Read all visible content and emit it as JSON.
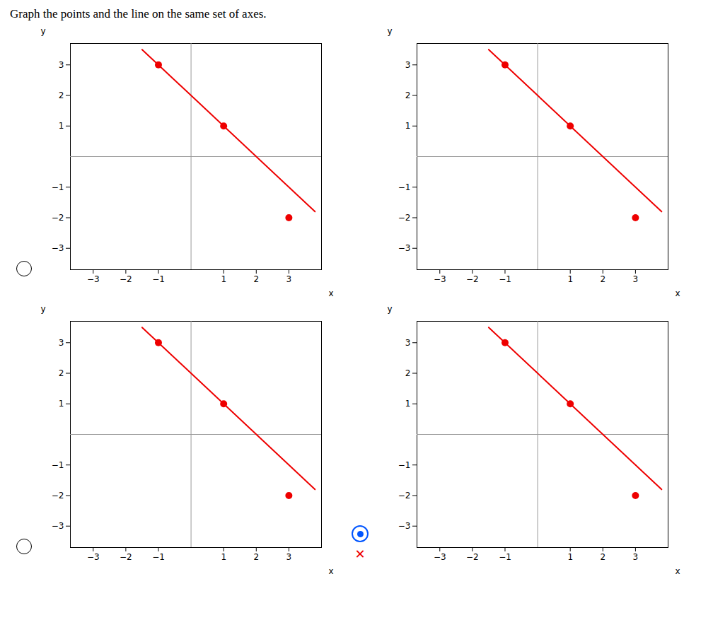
{
  "title": "Graph the points and the line on the same set of axes.",
  "chart_data": [
    {
      "type": "scatter",
      "xlabel": "x",
      "ylabel": "y",
      "grid": false,
      "xlim": [
        -3.7,
        4.0
      ],
      "ylim": [
        -3.7,
        3.7
      ],
      "xticks": [
        -3,
        -2,
        -1,
        1,
        2,
        3
      ],
      "yticks": [
        -3,
        -2,
        -1,
        1,
        2,
        3
      ],
      "series": [
        {
          "type": "line",
          "color": "#EE0000",
          "x": [
            -1.5,
            3.8
          ],
          "values": [
            3.5,
            -1.8
          ]
        },
        {
          "type": "scatter",
          "color": "#EE0000",
          "x": [
            -1,
            1,
            3
          ],
          "values": [
            3,
            1,
            -2
          ]
        }
      ]
    },
    {
      "type": "scatter",
      "xlabel": "x",
      "ylabel": "y",
      "grid": false,
      "xlim": [
        -3.7,
        4.0
      ],
      "ylim": [
        -3.7,
        3.7
      ],
      "xticks": [
        -3,
        -2,
        -1,
        1,
        2,
        3
      ],
      "yticks": [
        -3,
        -2,
        -1,
        1,
        2,
        3
      ],
      "series": [
        {
          "type": "line",
          "color": "#EE0000",
          "x": [
            -1.5,
            3.8
          ],
          "values": [
            3.5,
            -1.8
          ]
        },
        {
          "type": "scatter",
          "color": "#EE0000",
          "x": [
            -1,
            1,
            3
          ],
          "values": [
            3,
            1,
            -2
          ]
        }
      ]
    },
    {
      "type": "scatter",
      "xlabel": "x",
      "ylabel": "y",
      "grid": false,
      "xlim": [
        -3.7,
        4.0
      ],
      "ylim": [
        -3.7,
        3.7
      ],
      "xticks": [
        -3,
        -2,
        -1,
        1,
        2,
        3
      ],
      "yticks": [
        -3,
        -2,
        -1,
        1,
        2,
        3
      ],
      "annotations": [
        {
          "text": "✕",
          "color": "#EE0000"
        }
      ],
      "series": [
        {
          "type": "line",
          "color": "#EE0000",
          "x": [
            -1.5,
            3.8
          ],
          "values": [
            3.5,
            -1.8
          ]
        },
        {
          "type": "scatter",
          "color": "#EE0000",
          "x": [
            -1,
            1,
            3
          ],
          "values": [
            3,
            1,
            -2
          ]
        }
      ]
    },
    {
      "type": "scatter",
      "xlabel": "x",
      "ylabel": "y",
      "grid": false,
      "xlim": [
        -3.7,
        4.0
      ],
      "ylim": [
        -3.7,
        3.7
      ],
      "xticks": [
        -3,
        -2,
        -1,
        1,
        2,
        3
      ],
      "yticks": [
        -3,
        -2,
        -1,
        1,
        2,
        3
      ],
      "series": [
        {
          "type": "line",
          "color": "#EE0000",
          "x": [
            -1.5,
            3.8
          ],
          "values": [
            3.5,
            -1.8
          ]
        },
        {
          "type": "scatter",
          "color": "#EE0000",
          "x": [
            -1,
            1,
            3
          ],
          "values": [
            3,
            1,
            -2
          ]
        }
      ]
    }
  ]
}
